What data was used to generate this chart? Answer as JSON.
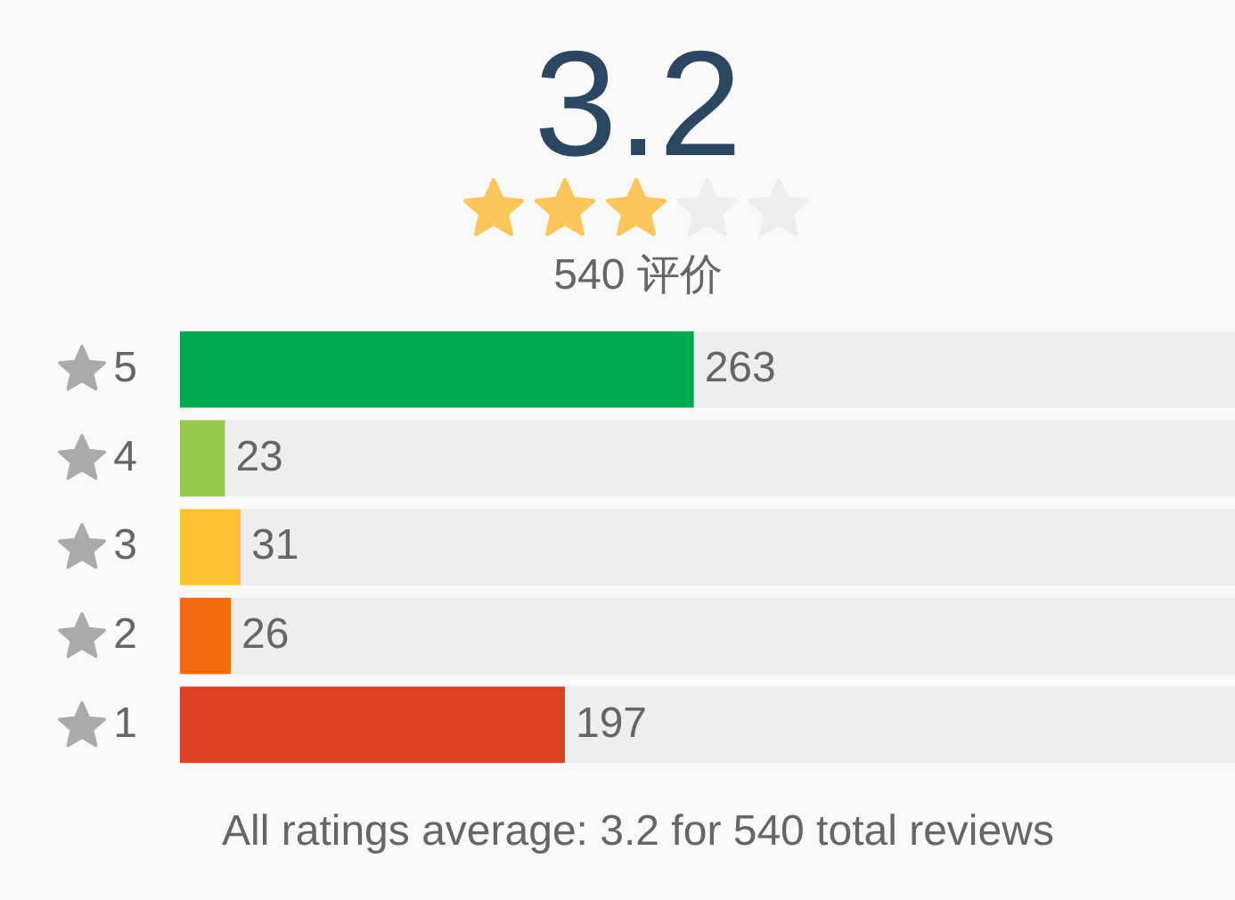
{
  "chart_data": {
    "type": "bar",
    "orientation": "horizontal",
    "title": "3.2",
    "subtitle": "540 评价",
    "categories": [
      "5",
      "4",
      "3",
      "2",
      "1"
    ],
    "values": [
      263,
      23,
      31,
      26,
      197
    ],
    "colors": [
      "#00a84f",
      "#97c94c",
      "#ffc233",
      "#f26c0d",
      "#dd4124"
    ],
    "value_labels": [
      "263",
      "23",
      "31",
      "26",
      "197"
    ],
    "annotations": [
      "All ratings average: 3.2 for 540 total reviews"
    ]
  }
}
